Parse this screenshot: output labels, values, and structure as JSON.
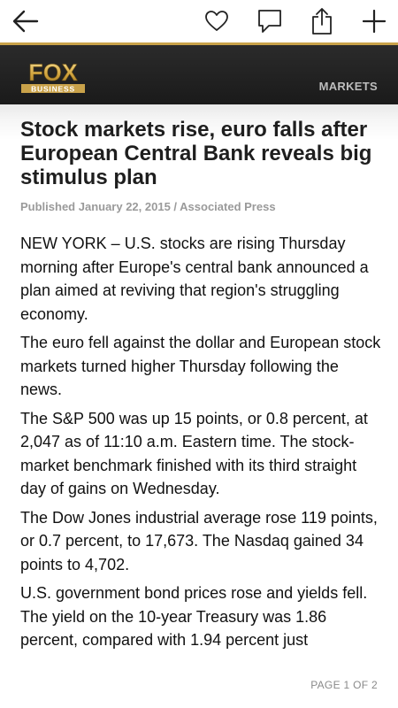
{
  "toolbar": {
    "back_icon": "back-arrow-icon",
    "favorite_icon": "heart-icon",
    "comment_icon": "speech-bubble-icon",
    "share_icon": "share-icon",
    "add_icon": "plus-icon"
  },
  "brand": {
    "logo_text_top": "FOX",
    "logo_text_bottom": "BUSINESS",
    "section": "MARKETS"
  },
  "colors": {
    "accent_gold": "#c9a24a",
    "brand_bar": "#1f1f1f"
  },
  "article": {
    "headline": "Stock markets rise, euro falls after European Central Bank reveals big stimulus plan",
    "byline": "Published January 22, 2015 / Associated Press",
    "paragraphs": [
      "NEW YORK – U.S. stocks are rising Thursday morning after Europe's central bank announced a plan aimed at reviving that region's struggling economy.",
      "The euro fell against the dollar and European stock markets turned higher Thursday following the news.",
      "The S&P 500 was up 15 points, or 0.8 percent, at 2,047 as of 11:10 a.m. Eastern time. The stock-market benchmark finished with its third straight day of gains on Wednesday.",
      "The Dow Jones industrial average rose 119 points, or 0.7 percent, to 17,673. The Nasdaq gained 34 points to 4,702.",
      "U.S. government bond prices rose and yields fell. The yield on the 10-year Treasury was 1.86 percent, compared with 1.94 percent just"
    ]
  },
  "pager": {
    "label": "PAGE 1 OF 2"
  }
}
